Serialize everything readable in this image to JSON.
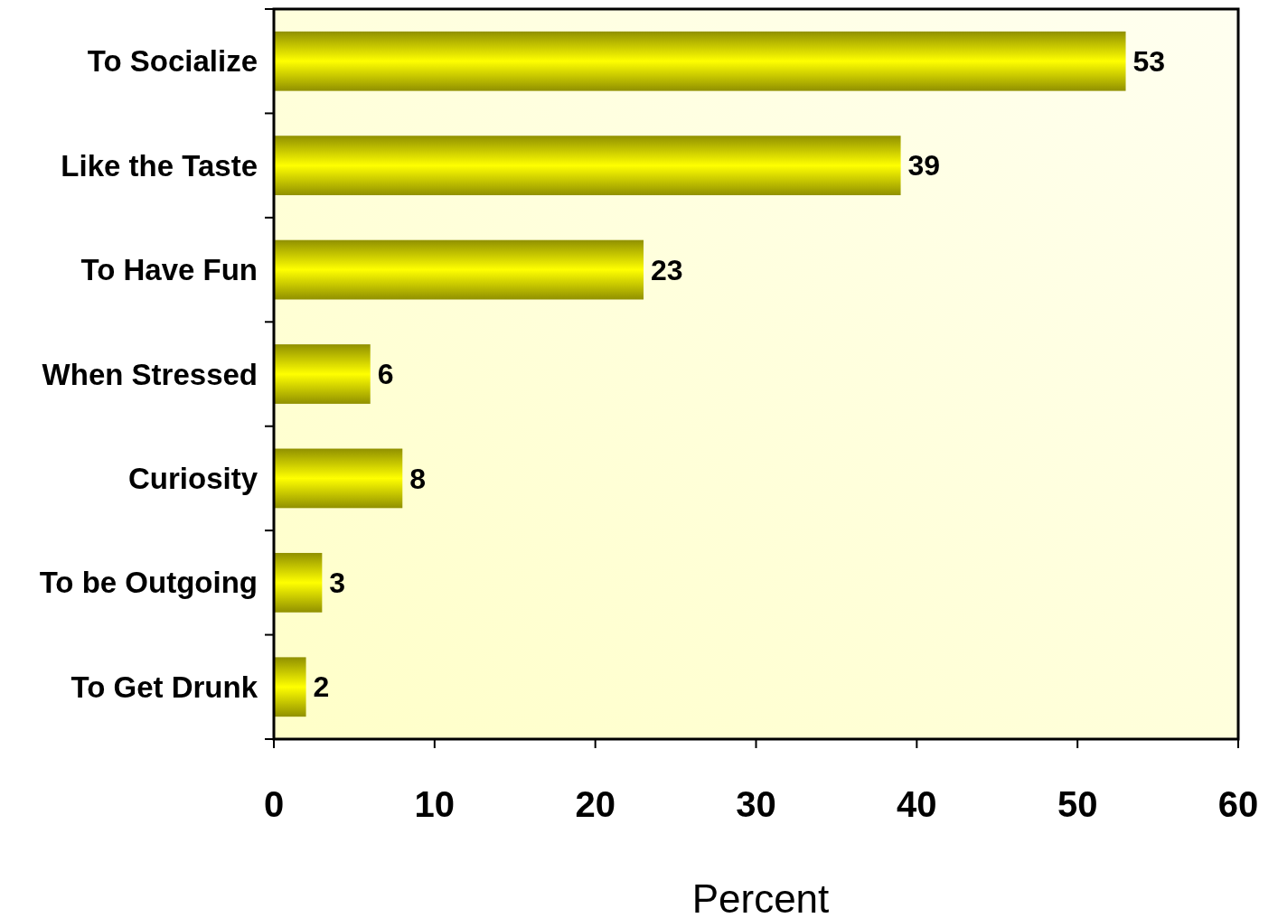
{
  "chart_data": {
    "type": "bar",
    "orientation": "horizontal",
    "categories": [
      "To Socialize",
      "Like the Taste",
      "To Have Fun",
      "When Stressed",
      "Curiosity",
      "To be Outgoing",
      "To Get Drunk"
    ],
    "values": [
      53,
      39,
      23,
      6,
      8,
      3,
      2
    ],
    "color": "#ffff00",
    "xlabel": "Percent",
    "xlim": [
      0,
      60
    ],
    "xticks": [
      0,
      10,
      20,
      30,
      40,
      50,
      60
    ],
    "data_labels": true
  }
}
